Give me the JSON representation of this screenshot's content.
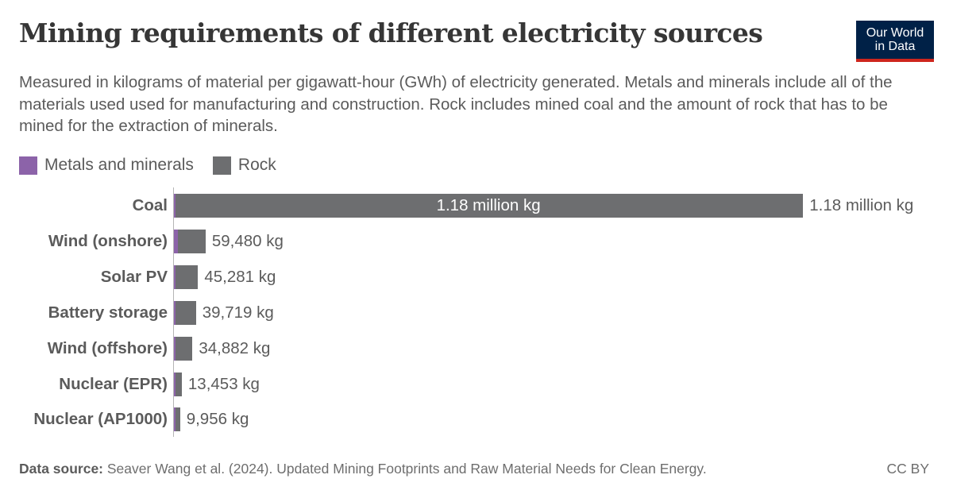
{
  "header": {
    "title": "Mining requirements of different electricity sources",
    "subtitle": "Measured in kilograms of material per gigawatt-hour (GWh) of electricity generated. Metals and minerals include all of the materials used used for manufacturing and construction. Rock includes mined coal and the amount of rock that has to be mined for the extraction of minerals.",
    "logo_line1": "Our World",
    "logo_line2": "in Data"
  },
  "legend": [
    {
      "label": "Metals and minerals",
      "color": "#8c63a9"
    },
    {
      "label": "Rock",
      "color": "#6d6e70"
    }
  ],
  "footer": {
    "source_label": "Data source:",
    "source_text": " Seaver Wang et al. (2024). Updated Mining Footprints and Raw Material Needs for Clean Energy.",
    "license": "CC BY"
  },
  "colors": {
    "metals": "#8c63a9",
    "rock": "#6d6e70",
    "logo_bg": "#002147",
    "logo_accent": "#ce261e"
  },
  "chart_data": {
    "type": "bar",
    "orientation": "horizontal",
    "stacked": true,
    "title": "Mining requirements of different electricity sources",
    "xlabel": "",
    "ylabel": "",
    "unit": "kg per GWh",
    "categories": [
      "Coal",
      "Wind (onshore)",
      "Solar PV",
      "Battery storage",
      "Wind (offshore)",
      "Nuclear (EPR)",
      "Nuclear (AP1000)"
    ],
    "totals": [
      1180000,
      59480,
      45281,
      39719,
      34882,
      13453,
      9956
    ],
    "total_labels": [
      "1.18 million kg",
      "59,480 kg",
      "45,281 kg",
      "39,719 kg",
      "34,882 kg",
      "13,453 kg",
      "9,956 kg"
    ],
    "series": [
      {
        "name": "Metals and minerals",
        "color": "#8c63a9",
        "values": [
          400,
          7500,
          2800,
          600,
          2500,
          900,
          700
        ]
      },
      {
        "name": "Rock",
        "color": "#6d6e70",
        "values": [
          1179600,
          51980,
          42481,
          39119,
          32382,
          12553,
          9256
        ]
      }
    ],
    "xlim": [
      0,
      1180000
    ],
    "grid": false,
    "legend_position": "top-left"
  }
}
